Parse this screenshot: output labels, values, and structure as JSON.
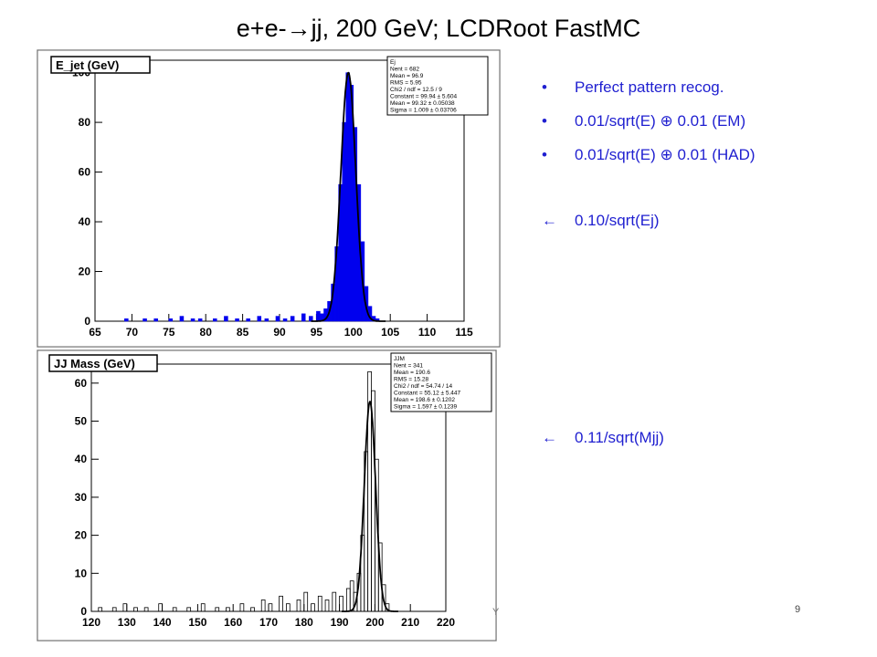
{
  "slide": {
    "title": "e+e-→jj, 200 GeV; LCDRoot FastMC",
    "page_number": "9",
    "corner_mark": "Y"
  },
  "bullets": [
    {
      "symbol": "•",
      "text": "Perfect pattern recog."
    },
    {
      "symbol": "•",
      "text": "0.01/sqrt(E) ⊕ 0.01 (EM)"
    },
    {
      "symbol": "•",
      "text": "0.01/sqrt(E) ⊕ 0.01 (HAD)"
    }
  ],
  "arrow_notes": [
    {
      "symbol": "←",
      "text": "0.10/sqrt(Ej)"
    },
    {
      "symbol": "←",
      "text": "0.11/sqrt(Mjj)"
    }
  ],
  "chart_data": [
    {
      "type": "bar",
      "title": "E_jet (GeV)",
      "xlim": [
        65,
        115
      ],
      "ylim": [
        0,
        105
      ],
      "x_ticks": [
        65,
        70,
        75,
        80,
        85,
        90,
        95,
        100,
        105,
        110,
        115
      ],
      "y_ticks": [
        0,
        20,
        40,
        60,
        80,
        100
      ],
      "stats_box": [
        "Ej",
        "Nent = 682",
        "Mean = 96.9",
        "RMS = 5.95",
        "Chi2 / ndf = 12.5 / 9",
        "Constant = 99.94 ± 5.604",
        "Mean = 99.32 ± 0.05038",
        "Sigma = 1.009 ± 0.03706"
      ],
      "fill_color": "#0000ee",
      "bin_width": 0.5,
      "bins": [
        [
          69,
          1
        ],
        [
          71.5,
          1
        ],
        [
          73,
          1
        ],
        [
          75,
          1
        ],
        [
          76.5,
          2
        ],
        [
          78,
          1
        ],
        [
          79,
          1
        ],
        [
          81,
          1
        ],
        [
          82.5,
          2
        ],
        [
          84,
          1
        ],
        [
          85.5,
          1
        ],
        [
          87,
          2
        ],
        [
          88,
          1
        ],
        [
          89.5,
          2
        ],
        [
          90.5,
          1
        ],
        [
          91.5,
          2
        ],
        [
          93,
          3
        ],
        [
          94,
          2
        ],
        [
          95,
          4
        ],
        [
          95.5,
          3
        ],
        [
          96,
          5
        ],
        [
          96.5,
          8
        ],
        [
          97,
          15
        ],
        [
          97.5,
          30
        ],
        [
          98,
          55
        ],
        [
          98.5,
          80
        ],
        [
          99,
          100
        ],
        [
          99.5,
          95
        ],
        [
          100,
          78
        ],
        [
          100.5,
          55
        ],
        [
          101,
          32
        ],
        [
          101.5,
          14
        ],
        [
          102,
          6
        ],
        [
          102.5,
          2
        ],
        [
          103,
          1
        ]
      ],
      "fit": {
        "constant": 99.94,
        "mean": 99.32,
        "sigma": 1.009
      }
    },
    {
      "type": "bar",
      "title": "JJ Mass (GeV)",
      "xlim": [
        120,
        220
      ],
      "ylim": [
        0,
        65
      ],
      "x_ticks": [
        120,
        130,
        140,
        150,
        160,
        170,
        180,
        190,
        200,
        210,
        220
      ],
      "y_ticks": [
        0,
        10,
        20,
        30,
        40,
        50,
        60
      ],
      "stats_box": [
        "JJM",
        "Nent = 341",
        "Mean = 190.6",
        "RMS = 15.28",
        "Chi2 / ndf = 54.74 / 14",
        "Constant = 55.12 ± 5.447",
        "Mean = 198.6 ± 0.1202",
        "Sigma = 1.597 ± 0.1239"
      ],
      "fill_color": "none",
      "bin_width": 1,
      "bins": [
        [
          122,
          1
        ],
        [
          126,
          1
        ],
        [
          129,
          2
        ],
        [
          132,
          1
        ],
        [
          135,
          1
        ],
        [
          139,
          2
        ],
        [
          143,
          1
        ],
        [
          147,
          1
        ],
        [
          151,
          2
        ],
        [
          155,
          1
        ],
        [
          158,
          1
        ],
        [
          162,
          2
        ],
        [
          165,
          1
        ],
        [
          168,
          3
        ],
        [
          170,
          2
        ],
        [
          173,
          4
        ],
        [
          175,
          2
        ],
        [
          178,
          3
        ],
        [
          180,
          5
        ],
        [
          182,
          2
        ],
        [
          184,
          4
        ],
        [
          186,
          3
        ],
        [
          188,
          5
        ],
        [
          190,
          4
        ],
        [
          192,
          6
        ],
        [
          193,
          8
        ],
        [
          194,
          5
        ],
        [
          195,
          10
        ],
        [
          196,
          20
        ],
        [
          197,
          42
        ],
        [
          198,
          63
        ],
        [
          199,
          58
        ],
        [
          200,
          40
        ],
        [
          201,
          18
        ],
        [
          202,
          7
        ],
        [
          203,
          2
        ]
      ],
      "fit": {
        "constant": 55.12,
        "mean": 198.6,
        "sigma": 1.597
      }
    }
  ]
}
